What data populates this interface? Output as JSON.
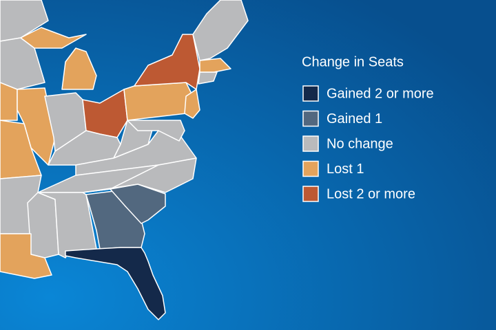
{
  "legend": {
    "title": "Change in Seats",
    "items": [
      {
        "label": "Gained 2 or more",
        "color": "#14294a"
      },
      {
        "label": "Gained 1",
        "color": "#52687f"
      },
      {
        "label": "No change",
        "color": "#b9babc"
      },
      {
        "label": "Lost 1",
        "color": "#e3a35c"
      },
      {
        "label": "Lost 2 or more",
        "color": "#bd5933"
      }
    ]
  }
}
